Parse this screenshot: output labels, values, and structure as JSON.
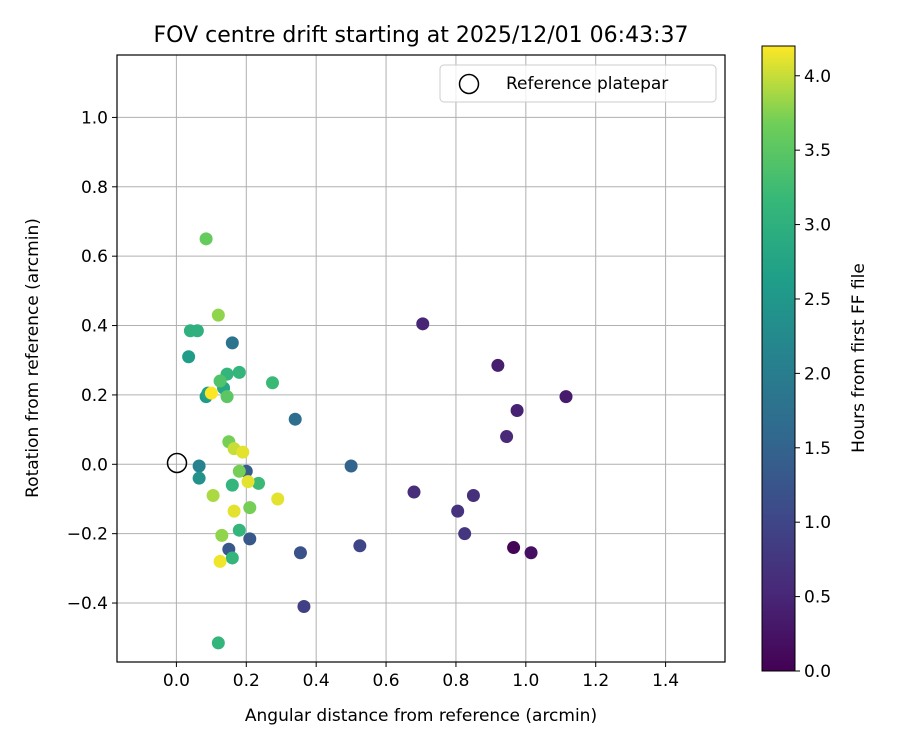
{
  "chart_data": {
    "type": "scatter",
    "title": "FOV centre drift starting at 2025/12/01 06:43:37",
    "xlabel": "Angular distance from reference (arcmin)",
    "ylabel": "Rotation from reference (arcmin)",
    "xlim": [
      -0.17,
      1.57
    ],
    "ylim": [
      -0.57,
      1.18
    ],
    "xticks": [
      0.0,
      0.2,
      0.4,
      0.6,
      0.8,
      1.0,
      1.2,
      1.4
    ],
    "xtick_labels": [
      "0.0",
      "0.2",
      "0.4",
      "0.6",
      "0.8",
      "1.0",
      "1.2",
      "1.4"
    ],
    "yticks": [
      -0.4,
      -0.2,
      0.0,
      0.2,
      0.4,
      0.6,
      0.8,
      1.0
    ],
    "ytick_labels": [
      "−0.4",
      "−0.2",
      "0.0",
      "0.2",
      "0.4",
      "0.6",
      "0.8",
      "1.0"
    ],
    "grid": true,
    "legend": {
      "location": "top-right",
      "entries": [
        "Reference platepar"
      ]
    },
    "reference_point": {
      "x": 0.0,
      "y": 0.0,
      "label": "Reference platepar"
    },
    "colorbar": {
      "label": "Hours from first FF file",
      "colormap": "viridis",
      "range": [
        0.0,
        4.2
      ],
      "ticks": [
        0.0,
        0.5,
        1.0,
        1.5,
        2.0,
        2.5,
        3.0,
        3.5,
        4.0
      ],
      "tick_labels": [
        "0.0",
        "0.5",
        "1.0",
        "1.5",
        "2.0",
        "2.5",
        "3.0",
        "3.5",
        "4.0"
      ]
    },
    "points": [
      {
        "x": 0.965,
        "y": -0.24,
        "c": 0.05
      },
      {
        "x": 1.015,
        "y": -0.255,
        "c": 0.2
      },
      {
        "x": 1.115,
        "y": 0.195,
        "c": 0.35
      },
      {
        "x": 0.92,
        "y": 0.285,
        "c": 0.4
      },
      {
        "x": 0.975,
        "y": 0.155,
        "c": 0.45
      },
      {
        "x": 0.945,
        "y": 0.08,
        "c": 0.55
      },
      {
        "x": 0.705,
        "y": 0.405,
        "c": 0.5
      },
      {
        "x": 0.68,
        "y": -0.08,
        "c": 0.6
      },
      {
        "x": 0.85,
        "y": -0.09,
        "c": 0.65
      },
      {
        "x": 0.805,
        "y": -0.135,
        "c": 0.7
      },
      {
        "x": 0.825,
        "y": -0.2,
        "c": 0.75
      },
      {
        "x": 0.365,
        "y": -0.41,
        "c": 0.9
      },
      {
        "x": 0.525,
        "y": -0.235,
        "c": 1.0
      },
      {
        "x": 0.355,
        "y": -0.255,
        "c": 1.2
      },
      {
        "x": 0.21,
        "y": -0.215,
        "c": 1.3
      },
      {
        "x": 0.15,
        "y": -0.245,
        "c": 1.3
      },
      {
        "x": 0.2,
        "y": -0.02,
        "c": 1.4
      },
      {
        "x": 0.5,
        "y": -0.005,
        "c": 1.5
      },
      {
        "x": 0.34,
        "y": 0.13,
        "c": 1.7
      },
      {
        "x": 0.16,
        "y": 0.35,
        "c": 1.8
      },
      {
        "x": 0.065,
        "y": -0.005,
        "c": 2.1
      },
      {
        "x": 0.065,
        "y": -0.04,
        "c": 2.4
      },
      {
        "x": 0.085,
        "y": 0.195,
        "c": 2.6
      },
      {
        "x": 0.09,
        "y": 0.205,
        "c": 2.7
      },
      {
        "x": 0.135,
        "y": 0.22,
        "c": 2.8
      },
      {
        "x": 0.035,
        "y": 0.31,
        "c": 2.6
      },
      {
        "x": 0.04,
        "y": 0.385,
        "c": 3.0
      },
      {
        "x": 0.06,
        "y": 0.385,
        "c": 3.0
      },
      {
        "x": 0.145,
        "y": 0.26,
        "c": 3.1
      },
      {
        "x": 0.18,
        "y": 0.265,
        "c": 3.1
      },
      {
        "x": 0.275,
        "y": 0.235,
        "c": 3.2
      },
      {
        "x": 0.235,
        "y": -0.055,
        "c": 3.2
      },
      {
        "x": 0.16,
        "y": -0.06,
        "c": 3.1
      },
      {
        "x": 0.18,
        "y": -0.19,
        "c": 3.1
      },
      {
        "x": 0.16,
        "y": -0.27,
        "c": 3.1
      },
      {
        "x": 0.12,
        "y": -0.515,
        "c": 3.1
      },
      {
        "x": 0.125,
        "y": 0.24,
        "c": 3.4
      },
      {
        "x": 0.145,
        "y": 0.195,
        "c": 3.5
      },
      {
        "x": 0.085,
        "y": 0.65,
        "c": 3.6
      },
      {
        "x": 0.12,
        "y": 0.43,
        "c": 3.8
      },
      {
        "x": 0.15,
        "y": 0.065,
        "c": 3.7
      },
      {
        "x": 0.18,
        "y": -0.02,
        "c": 3.7
      },
      {
        "x": 0.21,
        "y": -0.125,
        "c": 3.7
      },
      {
        "x": 0.13,
        "y": -0.205,
        "c": 3.8
      },
      {
        "x": 0.105,
        "y": -0.09,
        "c": 3.9
      },
      {
        "x": 0.165,
        "y": 0.045,
        "c": 4.0
      },
      {
        "x": 0.19,
        "y": 0.035,
        "c": 4.1
      },
      {
        "x": 0.205,
        "y": -0.05,
        "c": 4.1
      },
      {
        "x": 0.29,
        "y": -0.1,
        "c": 4.1
      },
      {
        "x": 0.165,
        "y": -0.135,
        "c": 4.1
      },
      {
        "x": 0.125,
        "y": -0.28,
        "c": 4.15
      },
      {
        "x": 0.1,
        "y": 0.205,
        "c": 4.2
      }
    ]
  }
}
